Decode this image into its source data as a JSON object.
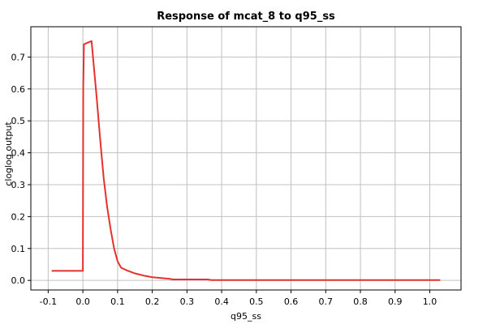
{
  "chart_data": {
    "type": "line",
    "title": "Response of mcat_8 to q95_ss",
    "x_label": "q95_ss",
    "y_label": "cloglog output",
    "x": [
      -0.09,
      0.0,
      0.001,
      0.003,
      0.025,
      0.04,
      0.05,
      0.06,
      0.07,
      0.08,
      0.09,
      0.1,
      0.11,
      0.13,
      0.15,
      0.18,
      0.2,
      0.22,
      0.25,
      0.26,
      0.3,
      0.36,
      0.37,
      0.5,
      1.03
    ],
    "series": [
      {
        "name": "cloglog output",
        "color": "#e8302a",
        "values": [
          0.03,
          0.03,
          0.6,
          0.74,
          0.75,
          0.57,
          0.44,
          0.32,
          0.23,
          0.16,
          0.1,
          0.06,
          0.04,
          0.03,
          0.022,
          0.014,
          0.01,
          0.008,
          0.005,
          0.003,
          0.003,
          0.003,
          0.001,
          0.001,
          0.001
        ]
      }
    ],
    "xlim": [
      -0.15,
      1.09
    ],
    "ylim": [
      -0.03,
      0.795
    ],
    "xticks": [
      -0.1,
      {
        "value": 0,
        "label": "0.0"
      },
      0.1,
      0.2,
      0.3,
      0.4,
      0.5,
      0.6,
      0.7,
      0.8,
      0.9,
      {
        "value": 1,
        "label": "1.0"
      }
    ],
    "yticks": [
      {
        "value": 0,
        "label": "0.0"
      },
      0.1,
      0.2,
      0.3,
      0.4,
      0.5,
      0.6,
      0.7
    ],
    "grid": true
  }
}
